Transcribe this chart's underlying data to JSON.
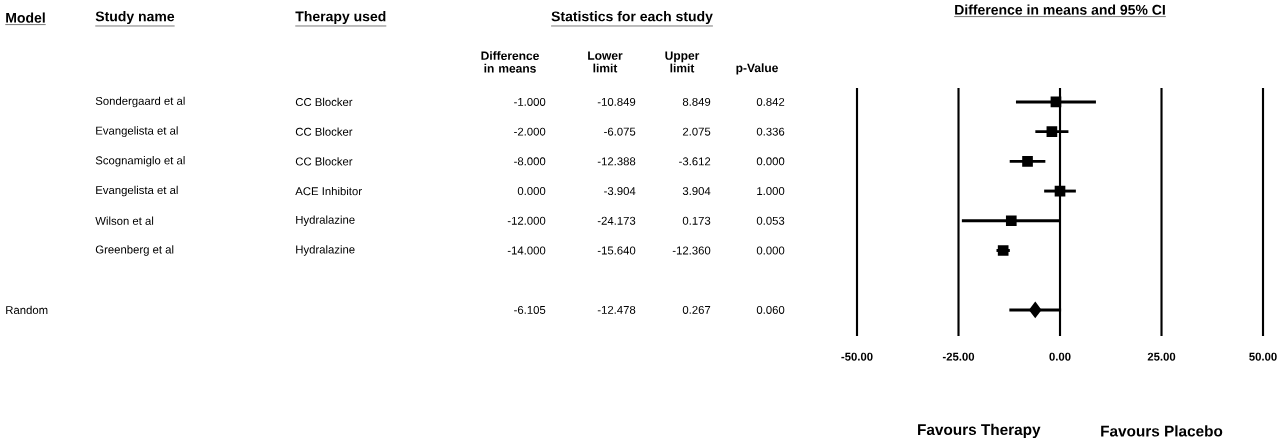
{
  "chart_data": [
    {
      "type": "other",
      "annotations": [
        "Model",
        "Study name",
        "Therapy used",
        "Statistics for each study",
        "Difference in means",
        "Lower limit",
        "Upper limit",
        "p-Value",
        "Sondergaard et al",
        "CC Blocker",
        "-1.000",
        "-10.849",
        "8.849",
        "0.842",
        "Evangelista et al",
        "CC Blocker",
        "-2.000",
        "-6.075",
        "2.075",
        "0.336",
        "Scognamiglo et al",
        "CC Blocker",
        "-8.000",
        "-12.388",
        "-3.612",
        "0.000",
        "Evangelista et al",
        "ACE Inhibitor",
        "0.000",
        "-3.904",
        "3.904",
        "1.000",
        "Wilson et al",
        "Hydralazine",
        "-12.000",
        "-24.173",
        "0.173",
        "0.053",
        "Greenberg et al",
        "Hydralazine",
        "-14.000",
        "-15.640",
        "-12.360",
        "0.000",
        "Random",
        "-6.105",
        "-12.478",
        "0.267",
        "0.060"
      ]
    },
    {
      "type": "scatter",
      "orientation": "horizontal",
      "title": "Difference in means and 95% CI",
      "categories": [
        null,
        null,
        null,
        null,
        null,
        null,
        null,
        null
      ],
      "series": [
        {
          "marker": "square",
          "color": "#000000",
          "values": [
            -1.0,
            -2.0,
            -8.0,
            0.0,
            -12.0,
            -14.0,
            null,
            null
          ],
          "errors": [
            [
              -10.849,
              8.849
            ],
            [
              -6.075,
              2.075
            ],
            [
              -12.388,
              -3.612
            ],
            [
              -3.904,
              3.904
            ],
            [
              -24.173,
              0.173
            ],
            [
              -15.64,
              -12.36
            ],
            null,
            null
          ]
        },
        {
          "marker": "diamond",
          "color": "#000000",
          "values": [
            null,
            null,
            null,
            null,
            null,
            null,
            null,
            -6.105
          ],
          "errors": [
            null,
            null,
            null,
            null,
            null,
            null,
            null,
            [
              -12.478,
              0.267
            ]
          ]
        }
      ],
      "xlim": [
        -50,
        50
      ],
      "xticks": [
        {
          "value": -50,
          "label": "-50.00"
        },
        {
          "value": -25,
          "label": "-25.00"
        },
        {
          "value": 0,
          "label": "0.00"
        },
        {
          "value": 25,
          "label": "25.00"
        },
        {
          "value": 50,
          "label": "50.00"
        }
      ],
      "grid": "x",
      "annotations": [
        "Favours Therapy",
        "Favours Placebo"
      ]
    }
  ]
}
